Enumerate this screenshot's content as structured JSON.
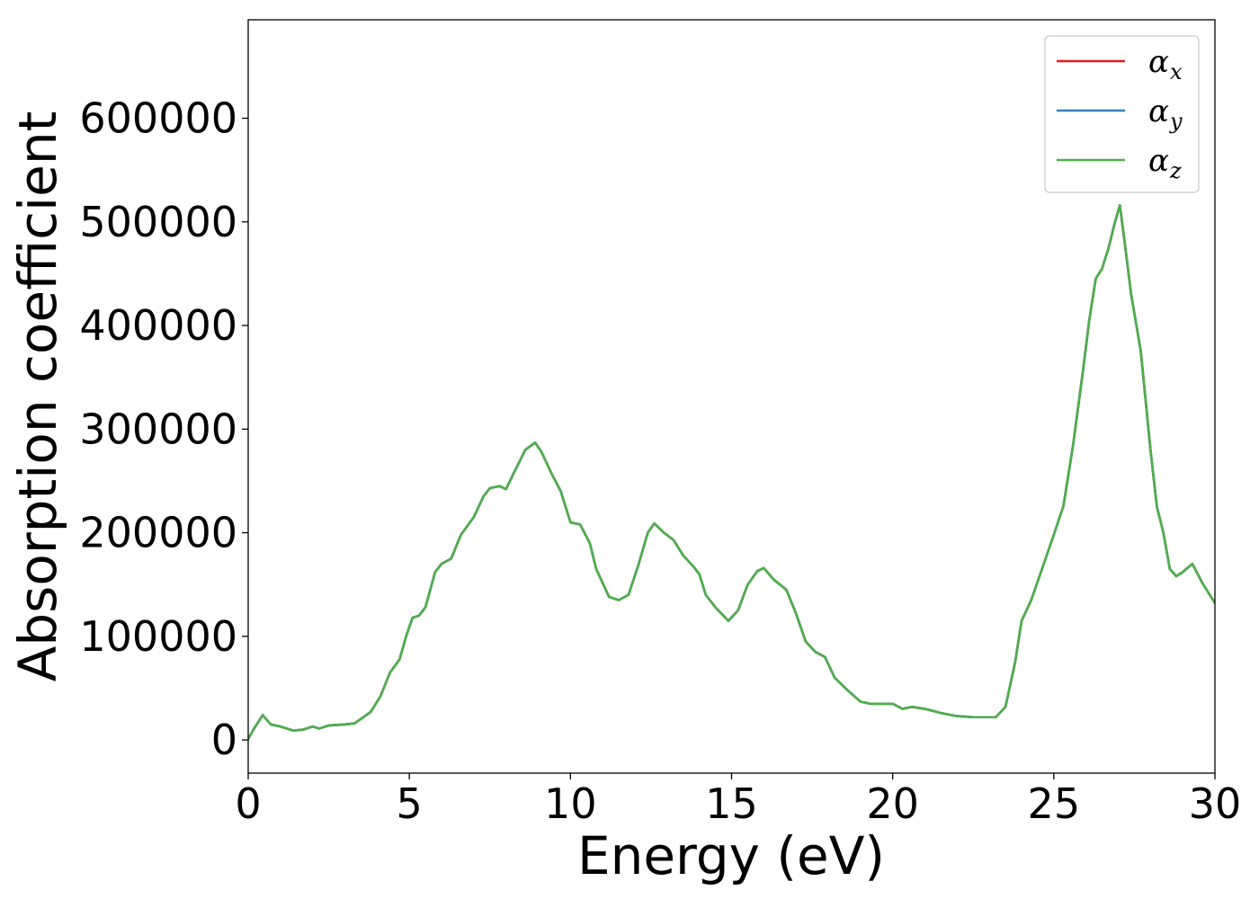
{
  "chart_data": {
    "type": "line",
    "xlabel": "Energy (eV)",
    "ylabel": "Absorption coefficient",
    "xlim": [
      0,
      30
    ],
    "ylim": [
      -32000,
      695000
    ],
    "xticks": [
      0,
      5,
      10,
      15,
      20,
      25,
      30
    ],
    "xtick_labels": [
      "0",
      "5",
      "10",
      "15",
      "20",
      "25",
      "30"
    ],
    "yticks": [
      0,
      100000,
      200000,
      300000,
      400000,
      500000,
      600000
    ],
    "ytick_labels": [
      "0",
      "100000",
      "200000",
      "300000",
      "400000",
      "500000",
      "600000"
    ],
    "grid": false,
    "legend_position": "top-right",
    "series": [
      {
        "name": "α",
        "subscript": "x",
        "color": "#e41a1c",
        "x": [
          0,
          0.2,
          0.45,
          0.7,
          1.0,
          1.4,
          1.7,
          2.0,
          2.2,
          2.5,
          3.0,
          3.3,
          3.8,
          4.1,
          4.4,
          4.7,
          4.9,
          5.1,
          5.3,
          5.5,
          5.8,
          6.0,
          6.3,
          6.6,
          7.0,
          7.3,
          7.5,
          7.8,
          8.0,
          8.2,
          8.6,
          8.9,
          9.1,
          9.4,
          9.7,
          10.0,
          10.3,
          10.6,
          10.8,
          11.2,
          11.5,
          11.8,
          12.1,
          12.4,
          12.6,
          12.9,
          13.2,
          13.5,
          13.8,
          14.0,
          14.2,
          14.5,
          14.9,
          15.2,
          15.5,
          15.8,
          16.0,
          16.3,
          16.7,
          17.0,
          17.3,
          17.6,
          17.9,
          18.2,
          18.6,
          19.0,
          19.3,
          19.6,
          20.0,
          20.3,
          20.6,
          21.0,
          21.5,
          22.0,
          22.5,
          23.0,
          23.2,
          23.5,
          23.8,
          24.0,
          24.3,
          24.6,
          25.0,
          25.3,
          25.6,
          25.9,
          26.1,
          26.3,
          26.5,
          26.7,
          26.9,
          27.05,
          27.2,
          27.4,
          27.7,
          28.0,
          28.2,
          28.4,
          28.6,
          28.8,
          29.0,
          29.3,
          29.6,
          30.0
        ],
        "y": [
          1000,
          12000,
          24000,
          15000,
          13000,
          9000,
          10000,
          13000,
          11000,
          14000,
          15000,
          16000,
          27000,
          42000,
          65000,
          78000,
          100000,
          118000,
          120000,
          128000,
          162000,
          170000,
          175000,
          198000,
          215000,
          235000,
          243000,
          245000,
          242000,
          255000,
          280000,
          287000,
          278000,
          258000,
          240000,
          210000,
          208000,
          190000,
          165000,
          138000,
          135000,
          140000,
          168000,
          200000,
          209000,
          200000,
          193000,
          178000,
          168000,
          160000,
          140000,
          128000,
          115000,
          125000,
          150000,
          163000,
          166000,
          155000,
          145000,
          122000,
          95000,
          85000,
          80000,
          60000,
          48000,
          37000,
          35000,
          35000,
          35000,
          30000,
          32000,
          30000,
          26000,
          23000,
          22000,
          22000,
          22000,
          32000,
          75000,
          115000,
          135000,
          162000,
          198000,
          226000,
          285000,
          355000,
          405000,
          445000,
          455000,
          475000,
          500000,
          516000,
          480000,
          430000,
          375000,
          280000,
          225000,
          200000,
          165000,
          158000,
          162000,
          170000,
          152000,
          132000
        ]
      },
      {
        "name": "α",
        "subscript": "y",
        "color": "#377eb8",
        "x": [
          0,
          0.2,
          0.45,
          0.7,
          1.0,
          1.4,
          1.7,
          2.0,
          2.2,
          2.5,
          3.0,
          3.3,
          3.8,
          4.1,
          4.4,
          4.7,
          4.9,
          5.1,
          5.3,
          5.5,
          5.8,
          6.0,
          6.3,
          6.6,
          7.0,
          7.3,
          7.5,
          7.8,
          8.0,
          8.2,
          8.6,
          8.9,
          9.1,
          9.4,
          9.7,
          10.0,
          10.3,
          10.6,
          10.8,
          11.2,
          11.5,
          11.8,
          12.1,
          12.4,
          12.6,
          12.9,
          13.2,
          13.5,
          13.8,
          14.0,
          14.2,
          14.5,
          14.9,
          15.2,
          15.5,
          15.8,
          16.0,
          16.3,
          16.7,
          17.0,
          17.3,
          17.6,
          17.9,
          18.2,
          18.6,
          19.0,
          19.3,
          19.6,
          20.0,
          20.3,
          20.6,
          21.0,
          21.5,
          22.0,
          22.5,
          23.0,
          23.2,
          23.5,
          23.8,
          24.0,
          24.3,
          24.6,
          25.0,
          25.3,
          25.6,
          25.9,
          26.1,
          26.3,
          26.5,
          26.7,
          26.9,
          27.05,
          27.2,
          27.4,
          27.7,
          28.0,
          28.2,
          28.4,
          28.6,
          28.8,
          29.0,
          29.3,
          29.6,
          30.0
        ],
        "y": [
          1000,
          12000,
          24000,
          15000,
          13000,
          9000,
          10000,
          13000,
          11000,
          14000,
          15000,
          16000,
          27000,
          42000,
          65000,
          78000,
          100000,
          118000,
          120000,
          128000,
          162000,
          170000,
          175000,
          198000,
          215000,
          235000,
          243000,
          245000,
          242000,
          255000,
          280000,
          287000,
          278000,
          258000,
          240000,
          210000,
          208000,
          190000,
          165000,
          138000,
          135000,
          140000,
          168000,
          200000,
          209000,
          200000,
          193000,
          178000,
          168000,
          160000,
          140000,
          128000,
          115000,
          125000,
          150000,
          163000,
          166000,
          155000,
          145000,
          122000,
          95000,
          85000,
          80000,
          60000,
          48000,
          37000,
          35000,
          35000,
          35000,
          30000,
          32000,
          30000,
          26000,
          23000,
          22000,
          22000,
          22000,
          32000,
          75000,
          115000,
          135000,
          162000,
          198000,
          226000,
          285000,
          355000,
          405000,
          445000,
          455000,
          475000,
          500000,
          516000,
          480000,
          430000,
          375000,
          280000,
          225000,
          200000,
          165000,
          158000,
          162000,
          170000,
          152000,
          132000
        ]
      },
      {
        "name": "α",
        "subscript": "z",
        "color": "#4daf4a",
        "x": [
          0,
          0.2,
          0.45,
          0.7,
          1.0,
          1.4,
          1.7,
          2.0,
          2.2,
          2.5,
          3.0,
          3.3,
          3.8,
          4.1,
          4.4,
          4.7,
          4.9,
          5.1,
          5.3,
          5.5,
          5.8,
          6.0,
          6.3,
          6.6,
          7.0,
          7.3,
          7.5,
          7.8,
          8.0,
          8.2,
          8.6,
          8.9,
          9.1,
          9.4,
          9.7,
          10.0,
          10.3,
          10.6,
          10.8,
          11.2,
          11.5,
          11.8,
          12.1,
          12.4,
          12.6,
          12.9,
          13.2,
          13.5,
          13.8,
          14.0,
          14.2,
          14.5,
          14.9,
          15.2,
          15.5,
          15.8,
          16.0,
          16.3,
          16.7,
          17.0,
          17.3,
          17.6,
          17.9,
          18.2,
          18.6,
          19.0,
          19.3,
          19.6,
          20.0,
          20.3,
          20.6,
          21.0,
          21.5,
          22.0,
          22.5,
          23.0,
          23.2,
          23.5,
          23.8,
          24.0,
          24.3,
          24.6,
          25.0,
          25.3,
          25.6,
          25.9,
          26.1,
          26.3,
          26.5,
          26.7,
          26.9,
          27.05,
          27.2,
          27.4,
          27.7,
          28.0,
          28.2,
          28.4,
          28.6,
          28.8,
          29.0,
          29.3,
          29.6,
          30.0
        ],
        "y": [
          1000,
          12000,
          24000,
          15000,
          13000,
          9000,
          10000,
          13000,
          11000,
          14000,
          15000,
          16000,
          27000,
          42000,
          65000,
          78000,
          100000,
          118000,
          120000,
          128000,
          162000,
          170000,
          175000,
          198000,
          215000,
          235000,
          243000,
          245000,
          242000,
          255000,
          280000,
          287000,
          278000,
          258000,
          240000,
          210000,
          208000,
          190000,
          165000,
          138000,
          135000,
          140000,
          168000,
          200000,
          209000,
          200000,
          193000,
          178000,
          168000,
          160000,
          140000,
          128000,
          115000,
          125000,
          150000,
          163000,
          166000,
          155000,
          145000,
          122000,
          95000,
          85000,
          80000,
          60000,
          48000,
          37000,
          35000,
          35000,
          35000,
          30000,
          32000,
          30000,
          26000,
          23000,
          22000,
          22000,
          22000,
          32000,
          75000,
          115000,
          135000,
          162000,
          198000,
          226000,
          285000,
          355000,
          405000,
          445000,
          455000,
          475000,
          500000,
          516000,
          480000,
          430000,
          375000,
          280000,
          225000,
          200000,
          165000,
          158000,
          162000,
          170000,
          152000,
          132000
        ]
      }
    ]
  }
}
